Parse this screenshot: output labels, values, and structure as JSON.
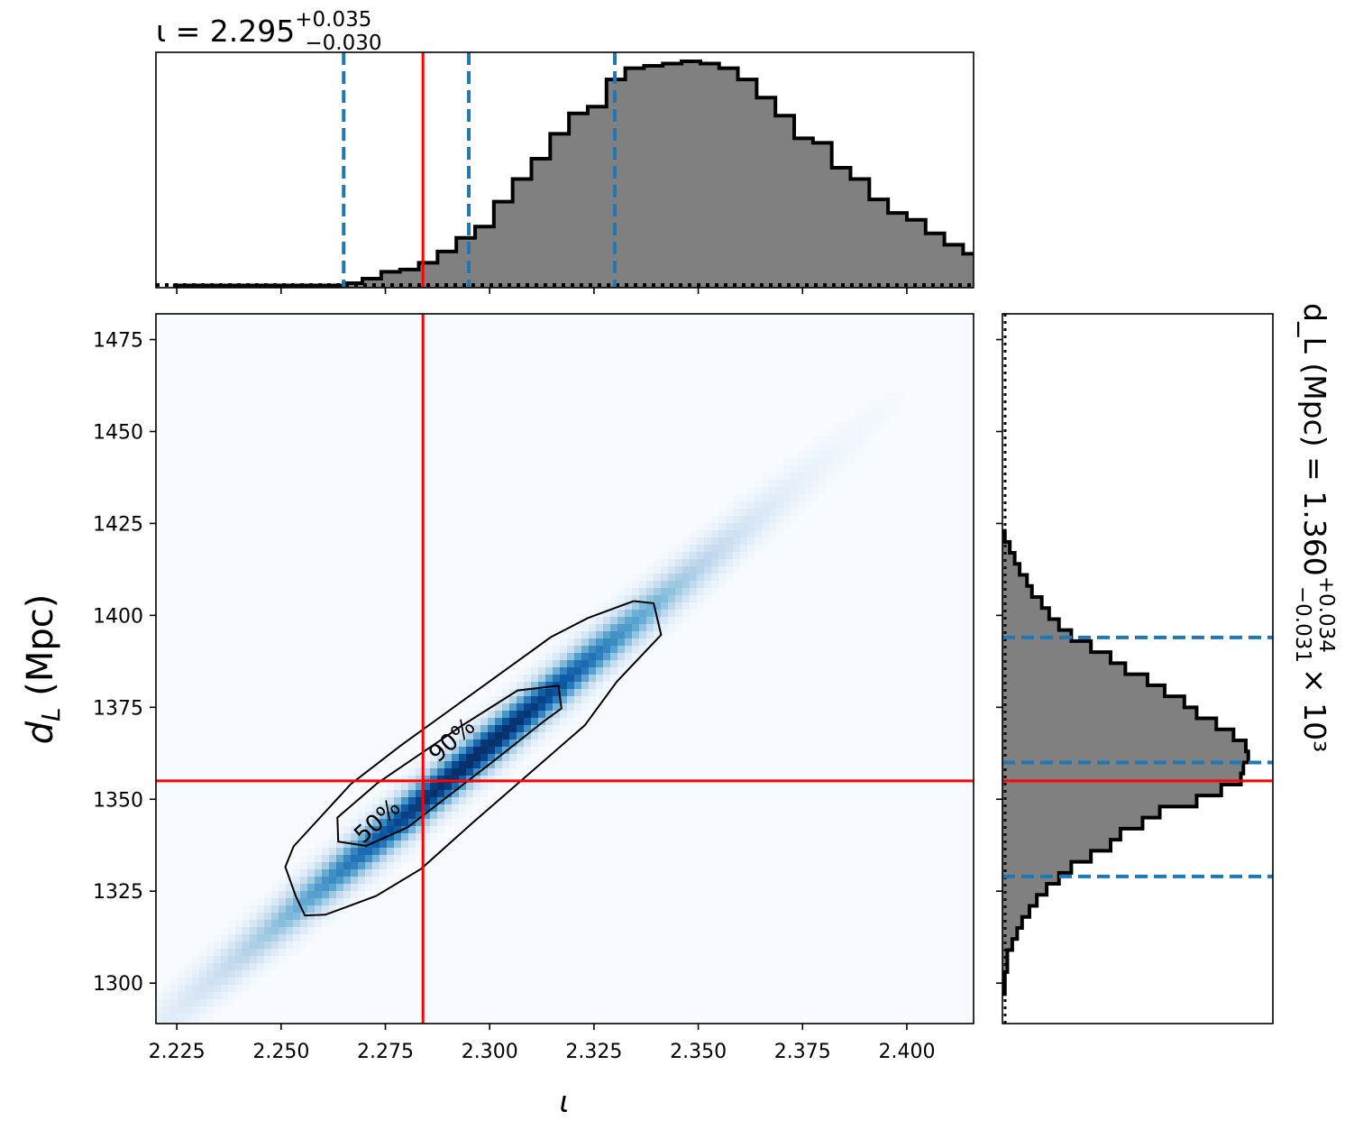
{
  "chart_data": [
    {
      "type": "histogram",
      "panel": "top-marginal",
      "title": {
        "prefix": "ι = 2.295",
        "sup": "+0.035",
        "sub": "−0.030"
      },
      "parameter": "ι",
      "median": 2.295,
      "err_plus": 0.035,
      "err_minus": 0.03,
      "quantile_lines": [
        2.265,
        2.295,
        2.33
      ],
      "truth": 2.284,
      "xlim": [
        2.22,
        2.416
      ],
      "bin_width": 0.0045,
      "bin_start": 2.2245,
      "counts": [
        0.01,
        0.01,
        0.01,
        0.01,
        0.01,
        0.01,
        0.01,
        0.01,
        0.01,
        0.02,
        0.04,
        0.07,
        0.08,
        0.11,
        0.16,
        0.22,
        0.27,
        0.38,
        0.48,
        0.57,
        0.68,
        0.77,
        0.8,
        0.92,
        0.97,
        0.98,
        0.99,
        1.0,
        0.99,
        0.97,
        0.92,
        0.84,
        0.76,
        0.66,
        0.64,
        0.53,
        0.48,
        0.39,
        0.33,
        0.3,
        0.24,
        0.19,
        0.15,
        0.12,
        0.09,
        0.07,
        0.05,
        0.04,
        0.03,
        0.025,
        0.015,
        0.01,
        0.008,
        0.005,
        0.004,
        0.003,
        0.002,
        0.001,
        0.001
      ],
      "ylim": [
        0,
        1.04
      ]
    },
    {
      "type": "heatmap",
      "panel": "joint",
      "xlabel": "ι",
      "ylabel": "d_L (Mpc)",
      "xlim": [
        2.22,
        2.416
      ],
      "ylim": [
        1289,
        1482
      ],
      "xticks": [
        2.225,
        2.25,
        2.275,
        2.3,
        2.325,
        2.35,
        2.375,
        2.4
      ],
      "xtick_labels": [
        "2.225",
        "2.250",
        "2.275",
        "2.300",
        "2.325",
        "2.350",
        "2.375",
        "2.400"
      ],
      "yticks": [
        1300,
        1325,
        1350,
        1375,
        1400,
        1425,
        1450,
        1475
      ],
      "ytick_labels": [
        "1300",
        "1325",
        "1350",
        "1375",
        "1400",
        "1425",
        "1450",
        "1475"
      ],
      "density_center": [
        2.296,
        1361
      ],
      "density_axis_end": [
        2.352,
        1415
      ],
      "colormap": "Blues",
      "contours": [
        {
          "label": "50%",
          "points": [
            [
              2.2637,
              1338.5
            ],
            [
              2.2704,
              1337.3
            ],
            [
              2.2804,
              1342.4
            ],
            [
              2.3014,
              1360.8
            ],
            [
              2.3131,
              1371.3
            ],
            [
              2.3172,
              1374.7
            ],
            [
              2.3165,
              1380.9
            ],
            [
              2.3067,
              1379.6
            ],
            [
              2.2932,
              1369.9
            ],
            [
              2.273,
              1354.3
            ],
            [
              2.2635,
              1345.0
            ]
          ]
        },
        {
          "label": "90%",
          "points": [
            [
              2.2557,
              1318.4
            ],
            [
              2.2606,
              1318.6
            ],
            [
              2.2728,
              1323.7
            ],
            [
              2.2836,
              1331.1
            ],
            [
              2.2958,
              1343.5
            ],
            [
              2.3228,
              1370.1
            ],
            [
              2.3305,
              1382.0
            ],
            [
              2.3411,
              1394.7
            ],
            [
              2.3393,
              1403.3
            ],
            [
              2.3345,
              1403.9
            ],
            [
              2.3236,
              1399.3
            ],
            [
              2.3147,
              1394.1
            ],
            [
              2.2787,
              1364.6
            ],
            [
              2.2667,
              1354.1
            ],
            [
              2.253,
              1337.2
            ],
            [
              2.251,
              1331.6
            ],
            [
              2.2535,
              1323.7
            ]
          ]
        }
      ],
      "contour_labels": [
        "50%",
        "90%"
      ],
      "truth": [
        2.284,
        1355
      ]
    },
    {
      "type": "histogram",
      "panel": "right-marginal",
      "orientation": "horizontal",
      "title": {
        "prefix": "d_L (Mpc) = 1.360",
        "sup": "+0.034",
        "sub": "−0.031",
        "suffix": "× 10³"
      },
      "parameter": "d_L (Mpc)",
      "median": 1360,
      "err_plus": 34,
      "err_minus": 31,
      "quantile_lines": [
        1329,
        1360,
        1394
      ],
      "truth": 1355,
      "ylim": [
        1289,
        1482
      ],
      "xlim": [
        0,
        1.1
      ],
      "bin_edges": [
        1297,
        1300,
        1303,
        1306,
        1309,
        1312,
        1315,
        1318,
        1321,
        1324,
        1327,
        1330,
        1333,
        1336,
        1339,
        1342,
        1345,
        1348,
        1351,
        1354,
        1357,
        1360,
        1363,
        1366,
        1369,
        1372,
        1375,
        1378,
        1381,
        1384,
        1387,
        1390,
        1393,
        1396,
        1399,
        1402,
        1405,
        1408,
        1411,
        1414,
        1417,
        1420,
        1423
      ],
      "counts": [
        0.01,
        0.01,
        0.02,
        0.02,
        0.04,
        0.06,
        0.08,
        0.11,
        0.14,
        0.18,
        0.23,
        0.28,
        0.36,
        0.44,
        0.48,
        0.57,
        0.64,
        0.79,
        0.89,
        0.97,
        0.98,
        1.0,
        0.99,
        0.94,
        0.87,
        0.79,
        0.74,
        0.66,
        0.59,
        0.5,
        0.44,
        0.36,
        0.28,
        0.23,
        0.19,
        0.16,
        0.12,
        0.1,
        0.07,
        0.05,
        0.03,
        0.01
      ]
    }
  ],
  "colors": {
    "hist_fill": "#808080",
    "hist_edge": "#000000",
    "quantile_line": "#1f77b4",
    "truth_line": "#ff0000",
    "contour": "#000000"
  }
}
